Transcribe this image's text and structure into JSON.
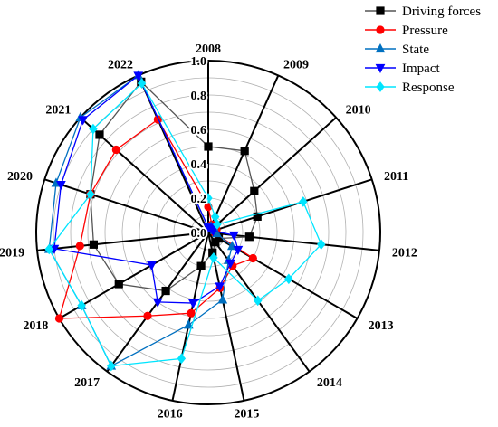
{
  "chart_data": {
    "type": "radar",
    "categories": [
      "2008",
      "2009",
      "2010",
      "2011",
      "2012",
      "2013",
      "2014",
      "2015",
      "2016",
      "2017",
      "2018",
      "2019",
      "2020",
      "2021",
      "2022"
    ],
    "rlim": [
      0,
      1.0
    ],
    "ticks": [
      "0.0",
      "0.2",
      "0.4",
      "0.6",
      "0.8",
      "1.0"
    ],
    "tick_values": [
      0,
      0.2,
      0.4,
      0.6,
      0.8,
      1.0
    ],
    "grid": true,
    "legend_position": "top-right",
    "series": [
      {
        "name": "Driving forces",
        "color": "#000000",
        "marker": "square",
        "values": [
          0.5,
          0.52,
          0.36,
          0.3,
          0.24,
          0.07,
          0.07,
          0.12,
          0.2,
          0.42,
          0.6,
          0.67,
          0.72,
          0.85,
          0.96
        ]
      },
      {
        "name": "Pressure",
        "color": "#ff0000",
        "marker": "circle",
        "values": [
          0.15,
          0.05,
          0.06,
          0.05,
          0.04,
          0.3,
          0.24,
          0.33,
          0.48,
          0.6,
          1.0,
          0.75,
          0.72,
          0.72,
          0.72
        ]
      },
      {
        "name": "State",
        "color": "#0070c0",
        "marker": "triangle",
        "values": [
          0.03,
          0.04,
          0.04,
          0.04,
          0.05,
          0.16,
          0.2,
          0.4,
          0.55,
          0.96,
          0.85,
          0.93,
          0.93,
          1.0,
          1.0
        ]
      },
      {
        "name": "Impact",
        "color": "#0000ff",
        "marker": "triangle-down",
        "values": [
          0.03,
          0.03,
          0.03,
          0.03,
          0.15,
          0.2,
          0.22,
          0.32,
          0.42,
          0.5,
          0.38,
          0.9,
          0.9,
          0.98,
          1.0
        ]
      },
      {
        "name": "Response",
        "color": "#00e5ff",
        "marker": "diamond",
        "values": [
          0.2,
          0.1,
          0.07,
          0.58,
          0.66,
          0.54,
          0.49,
          0.15,
          0.75,
          0.96,
          0.85,
          0.93,
          0.72,
          0.9,
          0.95
        ]
      }
    ]
  }
}
